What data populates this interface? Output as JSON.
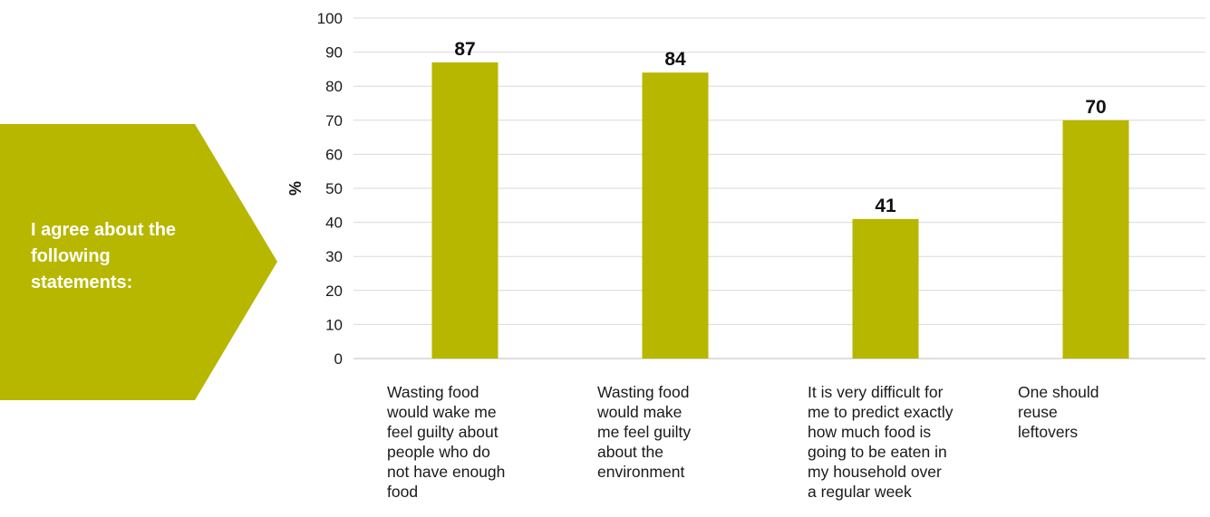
{
  "callout": {
    "text": "I agree about the following statements:",
    "color": "#b7b700"
  },
  "chart_data": {
    "type": "bar",
    "categories": [
      "Wasting food would wake me feel guilty about people who do not have enough food",
      "Wasting food would make me feel guilty about the environment",
      "It is very difficult for me to predict exactly how much food is going to be eaten in my household over a regular week",
      "One should reuse leftovers"
    ],
    "category_lines": [
      [
        "Wasting food",
        "would wake me",
        "feel guilty about",
        "people who do",
        "not have enough",
        "food"
      ],
      [
        "Wasting food",
        "would make",
        "me feel guilty",
        "about the",
        "environment"
      ],
      [
        "It is very difficult for",
        "me to predict exactly",
        "how much food is",
        "going to be eaten in",
        "my household over",
        "a regular week"
      ],
      [
        "One should",
        "reuse",
        "leftovers"
      ]
    ],
    "values": [
      87,
      84,
      41,
      70
    ],
    "data_labels": [
      "87",
      "84",
      "41",
      "70"
    ],
    "ylabel": "%",
    "ylim": [
      0,
      100
    ],
    "yticks": [
      "0",
      "10",
      "20",
      "30",
      "40",
      "50",
      "60",
      "70",
      "80",
      "90",
      "100"
    ],
    "bar_color": "#b7b700",
    "grid": true
  }
}
